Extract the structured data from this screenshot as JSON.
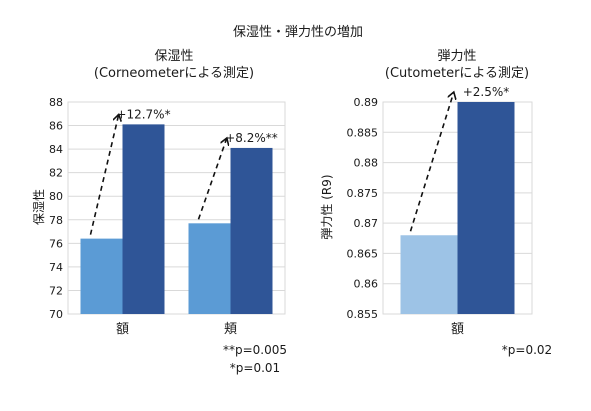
{
  "figure_title": "保湿性・弾力性の増加",
  "chart_data": [
    {
      "type": "bar",
      "title": "保湿性",
      "subtitle": "(Corneometerによる測定)",
      "ylabel": "保湿性",
      "xlabel": "",
      "categories": [
        "額",
        "頬"
      ],
      "ylim": [
        70,
        88
      ],
      "yticks": [
        70,
        72,
        74,
        76,
        78,
        80,
        82,
        84,
        86,
        88
      ],
      "tick_format": "int",
      "grid": true,
      "series": [
        {
          "values": [
            76.4,
            77.7
          ]
        },
        {
          "values": [
            86.1,
            84.1
          ]
        }
      ],
      "colors": [
        "#5b9bd5",
        "#2f5597"
      ],
      "annotations": [
        "+12.7%*",
        "+8.2%**"
      ],
      "footnotes": [
        "**p=0.005",
        "*p=0.01"
      ]
    },
    {
      "type": "bar",
      "title": "弾力性",
      "subtitle": "(Cutometerによる測定)",
      "ylabel": "弾力性 (R9)",
      "xlabel": "",
      "categories": [
        "額"
      ],
      "ylim": [
        0.855,
        0.89
      ],
      "yticks": [
        0.855,
        0.86,
        0.865,
        0.87,
        0.875,
        0.88,
        0.885,
        0.89
      ],
      "tick_format": "auto",
      "grid": true,
      "series": [
        {
          "values": [
            0.868
          ]
        },
        {
          "values": [
            0.89
          ]
        }
      ],
      "colors": [
        "#9dc3e6",
        "#2f5597"
      ],
      "annotations": [
        "+2.5%*"
      ],
      "footnotes": [
        "*p=0.02"
      ]
    }
  ]
}
